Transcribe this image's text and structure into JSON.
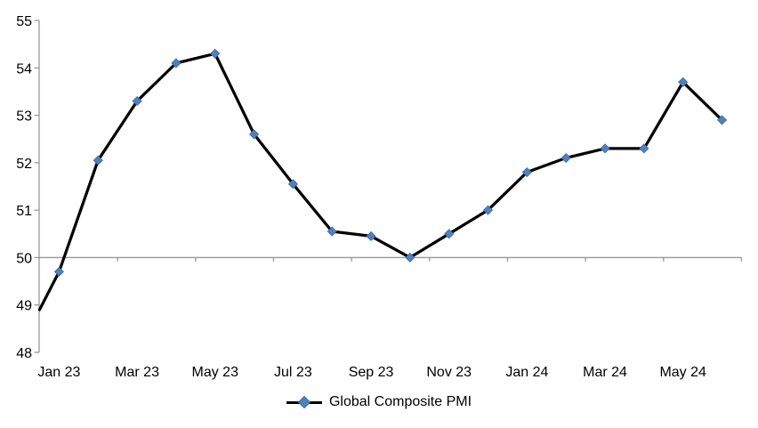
{
  "chart_data": {
    "type": "line",
    "title": "",
    "categories": [
      "Jan 23",
      "Feb 23",
      "Mar 23",
      "Apr 23",
      "May 23",
      "Jun 23",
      "Jul 23",
      "Aug 23",
      "Sep 23",
      "Oct 23",
      "Nov 23",
      "Dec 23",
      "Jan 24",
      "Feb 24",
      "Mar 24",
      "Apr 24",
      "May 24",
      "Jun 24"
    ],
    "series": [
      {
        "name": "Global Composite PMI",
        "values": [
          49.7,
          52.05,
          53.3,
          54.1,
          54.3,
          52.6,
          51.55,
          50.55,
          50.45,
          50.0,
          50.5,
          51.0,
          51.8,
          52.1,
          52.3,
          52.3,
          53.7,
          52.9
        ]
      }
    ],
    "visible_x_labels": [
      "Jan 23",
      "Mar 23",
      "May 23",
      "Jul 23",
      "Sep 23",
      "Nov 23",
      "Jan 24",
      "Mar 24",
      "May 24"
    ],
    "y_ticks": [
      48,
      49,
      50,
      51,
      52,
      53,
      54,
      55
    ],
    "ylim": [
      48,
      55
    ],
    "x_axis_cross_value": 50,
    "line_start_at_left_axis": 48.9,
    "grid": false,
    "legend": {
      "position": "bottom",
      "entries": [
        {
          "label": "Global Composite PMI",
          "marker": "diamond"
        }
      ]
    },
    "colors": {
      "series_line": "#000000",
      "marker_fill": "#4F81BD",
      "marker_border": "#3A6BA5",
      "axis": "#989898",
      "text": "#000000",
      "background": "#FFFFFF"
    }
  }
}
